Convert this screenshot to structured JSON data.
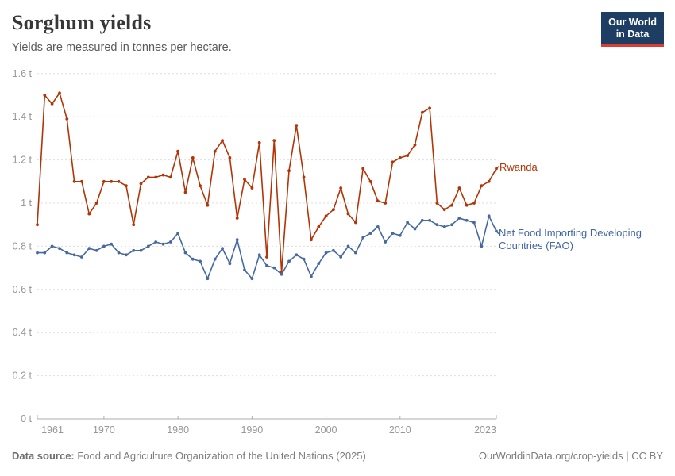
{
  "header": {
    "title": "Sorghum yields",
    "subtitle": "Yields are measured in tonnes per hectare.",
    "logo_line1": "Our World",
    "logo_line2": "in Data"
  },
  "legend": {
    "rwanda": "Rwanda",
    "nfidc": "Net Food Importing Developing Countries (FAO)"
  },
  "footer": {
    "source_label": "Data source:",
    "source_text": " Food and Agriculture Organization of the United Nations (2025)",
    "link_text": "OurWorldinData.org/crop-yields | CC BY"
  },
  "colors": {
    "rwanda": "#b13507",
    "nfidc": "#4669a0",
    "grid": "#dedede",
    "axis": "#adadad",
    "tick_text": "#979797"
  },
  "chart_data": {
    "type": "line",
    "title": "Sorghum yields",
    "ylabel": "tonnes per hectare",
    "unit": "t",
    "ylim": [
      0,
      1.6
    ],
    "grid": true,
    "legend_position": "right-of-line-end",
    "xticks": [
      1961,
      1970,
      1980,
      1990,
      2000,
      2010,
      2023
    ],
    "yticks": [
      {
        "v": 0,
        "label": "0 t"
      },
      {
        "v": 0.2,
        "label": "0.2 t"
      },
      {
        "v": 0.4,
        "label": "0.4 t"
      },
      {
        "v": 0.6,
        "label": "0.6 t"
      },
      {
        "v": 0.8,
        "label": "0.8 t"
      },
      {
        "v": 1,
        "label": "1 t"
      },
      {
        "v": 1.2,
        "label": "1.2 t"
      },
      {
        "v": 1.4,
        "label": "1.4 t"
      },
      {
        "v": 1.6,
        "label": "1.6 t"
      }
    ],
    "x": [
      1961,
      1962,
      1963,
      1964,
      1965,
      1966,
      1967,
      1968,
      1969,
      1970,
      1971,
      1972,
      1973,
      1974,
      1975,
      1976,
      1977,
      1978,
      1979,
      1980,
      1981,
      1982,
      1983,
      1984,
      1985,
      1986,
      1987,
      1988,
      1989,
      1990,
      1991,
      1992,
      1993,
      1994,
      1995,
      1996,
      1997,
      1998,
      1999,
      2000,
      2001,
      2002,
      2003,
      2004,
      2005,
      2006,
      2007,
      2008,
      2009,
      2010,
      2011,
      2012,
      2013,
      2014,
      2015,
      2016,
      2017,
      2018,
      2019,
      2020,
      2021,
      2022,
      2023
    ],
    "series": [
      {
        "name": "Rwanda",
        "color": "#b13507",
        "values": [
          0.9,
          1.5,
          1.46,
          1.51,
          1.39,
          1.1,
          1.1,
          0.95,
          1.0,
          1.1,
          1.1,
          1.1,
          1.08,
          0.9,
          1.09,
          1.12,
          1.12,
          1.13,
          1.12,
          1.24,
          1.05,
          1.21,
          1.08,
          0.99,
          1.24,
          1.29,
          1.21,
          0.93,
          1.11,
          1.07,
          1.28,
          0.75,
          1.29,
          0.68,
          1.15,
          1.36,
          1.12,
          0.83,
          0.89,
          0.94,
          0.97,
          1.07,
          0.95,
          0.91,
          1.16,
          1.1,
          1.01,
          1.0,
          1.19,
          1.21,
          1.22,
          1.27,
          1.42,
          1.44,
          1.0,
          0.97,
          0.99,
          1.07,
          0.99,
          1.0,
          1.08,
          1.1,
          1.16
        ]
      },
      {
        "name": "Net Food Importing Developing Countries (FAO)",
        "color": "#4669a0",
        "values": [
          0.77,
          0.77,
          0.8,
          0.79,
          0.77,
          0.76,
          0.75,
          0.79,
          0.78,
          0.8,
          0.81,
          0.77,
          0.76,
          0.78,
          0.78,
          0.8,
          0.82,
          0.81,
          0.82,
          0.86,
          0.77,
          0.74,
          0.73,
          0.65,
          0.74,
          0.79,
          0.72,
          0.83,
          0.69,
          0.65,
          0.76,
          0.71,
          0.7,
          0.67,
          0.73,
          0.76,
          0.74,
          0.66,
          0.72,
          0.77,
          0.78,
          0.75,
          0.8,
          0.77,
          0.84,
          0.86,
          0.89,
          0.82,
          0.86,
          0.85,
          0.91,
          0.88,
          0.92,
          0.92,
          0.9,
          0.89,
          0.9,
          0.93,
          0.92,
          0.91,
          0.8,
          0.94,
          0.87
        ]
      }
    ]
  }
}
